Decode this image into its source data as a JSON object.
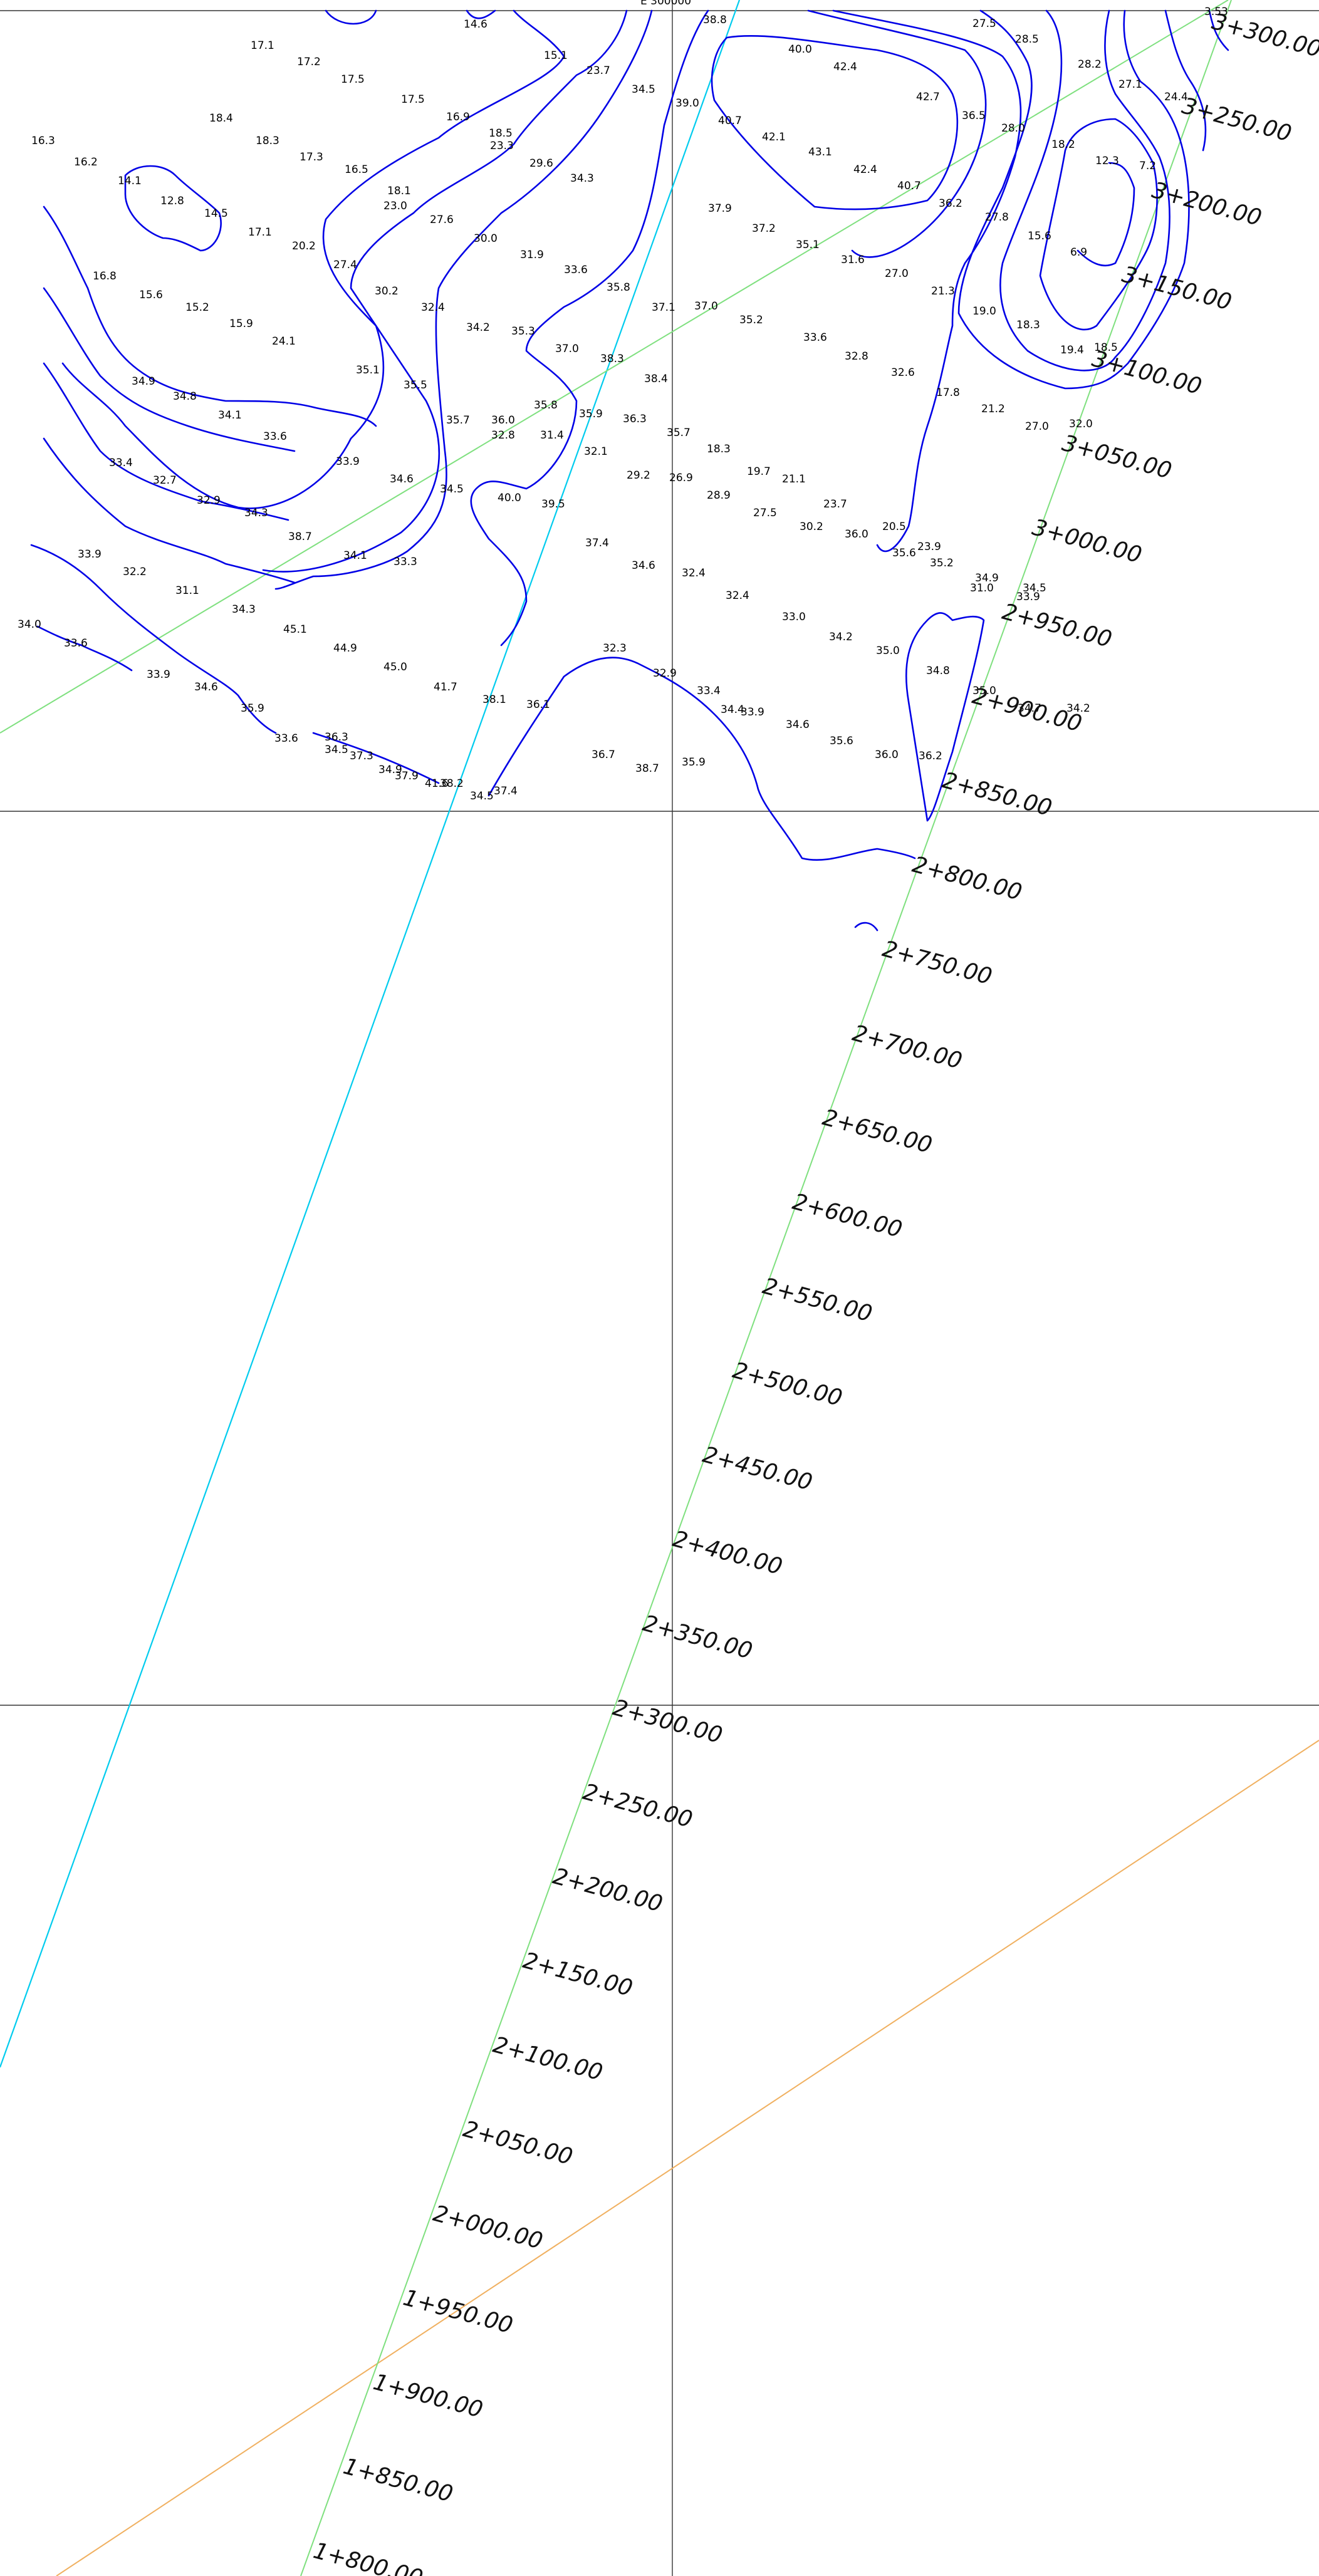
{
  "colors": {
    "background": "#ffffff",
    "contour": "#0000e6",
    "alignment": "#7fe07f",
    "edge_line": "#00ccee",
    "boundary": "#f0b060",
    "grid": "#333333",
    "text": "#000000"
  },
  "grid_label": "E 300000",
  "chainage_labels": [
    "1+800.00",
    "1+850.00",
    "1+900.00",
    "1+950.00",
    "2+000.00",
    "2+050.00",
    "2+100.00",
    "2+150.00",
    "2+200.00",
    "2+250.00",
    "2+300.00",
    "2+350.00",
    "2+400.00",
    "2+450.00",
    "2+500.00",
    "2+550.00",
    "2+600.00",
    "2+650.00",
    "2+700.00",
    "2+750.00",
    "2+800.00",
    "2+850.00",
    "2+900.00",
    "2+950.00",
    "3+000.00",
    "3+050.00",
    "3+100.00",
    "3+150.00",
    "3+200.00",
    "3+250.00",
    "3+300.00"
  ],
  "spot_elevations": [
    "14.6",
    "38.8",
    "27.5",
    "28.5",
    "28.2",
    "27.1",
    "24.4",
    "3.53",
    "17.1",
    "17.2",
    "17.5",
    "17.5",
    "16.9",
    "18.5",
    "15.1",
    "23.7",
    "34.5",
    "39.0",
    "40.0",
    "42.4",
    "42.7",
    "36.5",
    "28.0",
    "18.2",
    "12.3",
    "7.2",
    "16.3",
    "16.2",
    "18.4",
    "18.3",
    "17.3",
    "16.5",
    "18.1",
    "23.3",
    "29.6",
    "34.3",
    "40.7",
    "42.1",
    "43.1",
    "42.4",
    "40.7",
    "36.2",
    "27.8",
    "15.6",
    "6.9",
    "14.1",
    "12.8",
    "14.5",
    "17.1",
    "20.2",
    "23.0",
    "27.6",
    "30.0",
    "31.9",
    "33.6",
    "35.8",
    "37.1",
    "37.9",
    "37.2",
    "35.1",
    "31.6",
    "27.0",
    "21.3",
    "19.0",
    "18.3",
    "19.4",
    "18.5",
    "16.8",
    "15.6",
    "15.2",
    "15.9",
    "24.1",
    "27.4",
    "30.2",
    "32.4",
    "34.2",
    "35.3",
    "37.0",
    "38.3",
    "38.4",
    "37.0",
    "35.2",
    "33.6",
    "32.8",
    "32.6",
    "17.8",
    "21.2",
    "27.0",
    "32.0",
    "35.1",
    "35.5",
    "35.7",
    "36.0",
    "35.8",
    "35.9",
    "36.3",
    "35.7",
    "18.3",
    "19.7",
    "21.1",
    "23.7",
    "20.5",
    "23.9",
    "31.0",
    "33.9",
    "34.9",
    "34.8",
    "34.1",
    "33.6",
    "33.9",
    "34.6",
    "34.5",
    "32.8",
    "31.4",
    "32.1",
    "29.2",
    "26.9",
    "28.9",
    "27.5",
    "30.2",
    "36.0",
    "35.6",
    "35.2",
    "34.9",
    "34.5",
    "33.4",
    "32.7",
    "32.9",
    "34.3",
    "38.7",
    "34.1",
    "33.3",
    "40.0",
    "39.5",
    "37.4",
    "34.6",
    "32.4",
    "32.4",
    "33.0",
    "34.2",
    "35.0",
    "34.8",
    "35.0",
    "34.7",
    "34.2",
    "33.9",
    "32.2",
    "31.1",
    "34.3",
    "45.1",
    "44.9",
    "45.0",
    "41.7",
    "38.1",
    "36.1",
    "32.3",
    "32.9",
    "33.4",
    "33.9",
    "34.6",
    "35.6",
    "36.0",
    "36.2",
    "34.0",
    "33.6",
    "33.9",
    "34.6",
    "35.9",
    "36.3",
    "37.3",
    "37.9",
    "38.2",
    "37.4",
    "36.7",
    "38.7",
    "35.9",
    "34.4",
    "33.6",
    "34.5",
    "34.9",
    "41.6",
    "34.5"
  ]
}
